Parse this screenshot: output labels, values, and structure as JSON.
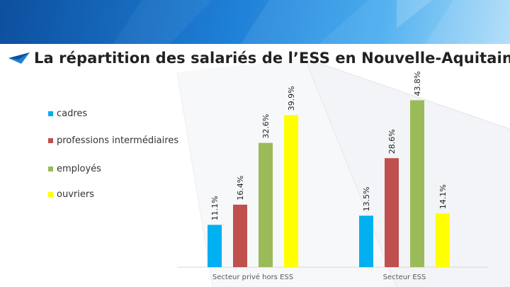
{
  "title": "La répartition des salariés de l’ESS en Nouvelle-Aquitaine",
  "colors": {
    "cadres": "#00b0f0",
    "professions_intermediaires": "#c0504d",
    "employes": "#9bbb59",
    "ouvriers": "#ffff00",
    "title": "#222222",
    "banner": "#1e7fd6"
  },
  "chart_data": {
    "type": "bar",
    "title": "La répartition des salariés de l’ESS en Nouvelle-Aquitaine",
    "categories": [
      "Secteur privé hors ESS",
      "Secteur ESS"
    ],
    "series": [
      {
        "name": "cadres",
        "values": [
          11.1,
          13.5
        ],
        "labels": [
          "11.1%",
          "13.5%"
        ],
        "color": "#00b0f0"
      },
      {
        "name": "professions intermédiaires",
        "values": [
          16.4,
          28.6
        ],
        "labels": [
          "16.4%",
          "28.6%"
        ],
        "color": "#c0504d"
      },
      {
        "name": "employés",
        "values": [
          32.6,
          43.8
        ],
        "labels": [
          "32.6%",
          "43.8%"
        ],
        "color": "#9bbb59"
      },
      {
        "name": "ouvriers",
        "values": [
          39.9,
          14.1
        ],
        "labels": [
          "39.9%",
          "14.1%"
        ],
        "color": "#ffff00"
      }
    ],
    "xlabel": "",
    "ylabel": "",
    "ylim": [
      0,
      45
    ],
    "legend_position": "left",
    "grid": false
  }
}
